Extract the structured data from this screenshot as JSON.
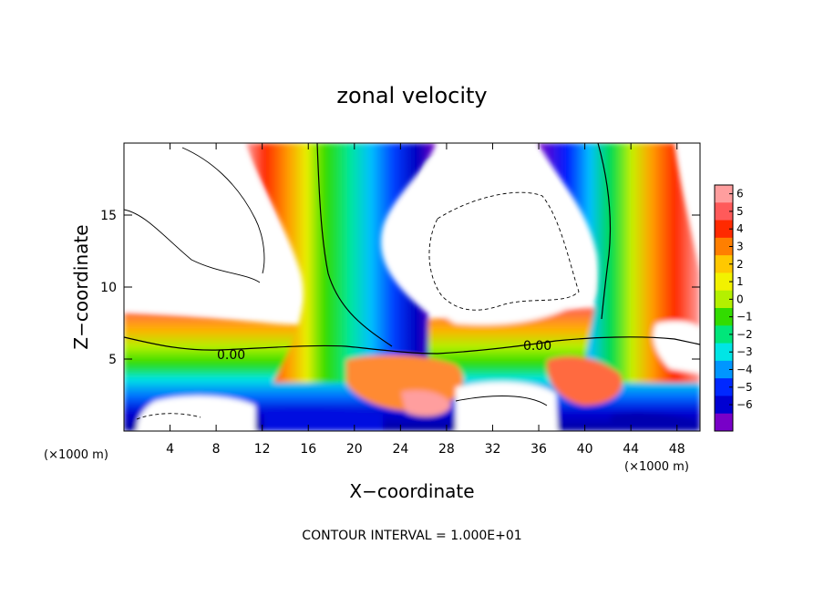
{
  "chart_data": {
    "type": "heatmap",
    "title": "zonal velocity",
    "xlabel": "X−coordinate",
    "ylabel": "Z−coordinate",
    "x_unit": "(×1000 m)",
    "xlim": [
      0,
      50
    ],
    "ylim": [
      0,
      20
    ],
    "x_ticks": [
      4,
      8,
      12,
      16,
      20,
      24,
      28,
      32,
      36,
      40,
      44,
      48
    ],
    "y_ticks": [
      5,
      10,
      15
    ],
    "colorbar": {
      "levels": [
        6,
        5,
        4,
        3,
        2,
        1,
        0,
        -1,
        -2,
        -3,
        -4,
        -5,
        -6
      ],
      "level_labels": [
        "6",
        "5",
        "4",
        "3",
        "2",
        "1",
        "0",
        "−1",
        "−2",
        "−3",
        "−4",
        "−5",
        "−6"
      ],
      "colors": [
        "#ff9e9e",
        "#ff5a5a",
        "#ff2a00",
        "#ff7f00",
        "#ffc800",
        "#f2f200",
        "#b4f000",
        "#32dc00",
        "#00e67a",
        "#00e5e5",
        "#0096ff",
        "#0028ff",
        "#0000d2",
        "#7800c8"
      ]
    },
    "contour_labels": [
      "0.00",
      "0.00"
    ],
    "footer": "CONTOUR INTERVAL = 1.000E+01"
  }
}
